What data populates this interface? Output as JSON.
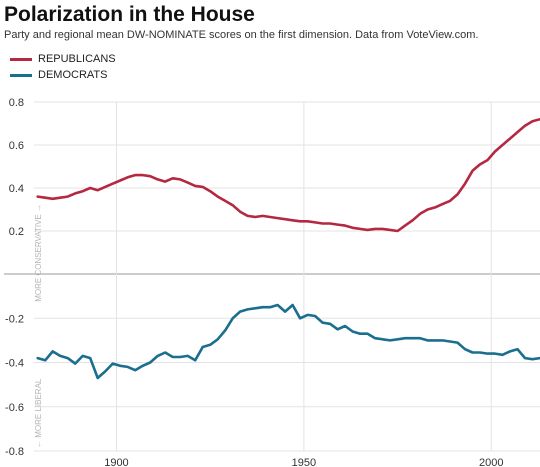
{
  "colors": {
    "republicans": "#b42840",
    "democrats": "#1a6e8e",
    "grid": "#e3e3e3",
    "zero": "#999999"
  },
  "chart_data": {
    "type": "line",
    "title": "Polarization in the House",
    "subtitle": "Party and regional mean DW-NOMINATE scores on the first dimension. Data from VoteView.com.",
    "xlabel": "",
    "ylabel": "",
    "xlim": [
      1878,
      2013
    ],
    "ylim": [
      -0.8,
      0.8
    ],
    "x_ticks": [
      1900,
      1950,
      2000
    ],
    "y_ticks": [
      0.8,
      0.6,
      0.4,
      0.2,
      -0.2,
      -0.4,
      -0.6,
      -0.8
    ],
    "grid": true,
    "legend": "top-left",
    "annotations": {
      "upper": "MORE CONSERVATIVE →",
      "lower": "← MORE LIBERAL"
    },
    "series": [
      {
        "name": "REPUBLICANS",
        "color": "#b42840",
        "x": [
          1879,
          1881,
          1883,
          1885,
          1887,
          1889,
          1891,
          1893,
          1895,
          1897,
          1899,
          1901,
          1903,
          1905,
          1907,
          1909,
          1911,
          1913,
          1915,
          1917,
          1919,
          1921,
          1923,
          1925,
          1927,
          1929,
          1931,
          1933,
          1935,
          1937,
          1939,
          1941,
          1943,
          1945,
          1947,
          1949,
          1951,
          1953,
          1955,
          1957,
          1959,
          1961,
          1963,
          1965,
          1967,
          1969,
          1971,
          1973,
          1975,
          1977,
          1979,
          1981,
          1983,
          1985,
          1987,
          1989,
          1991,
          1993,
          1995,
          1997,
          1999,
          2001,
          2003,
          2005,
          2007,
          2009,
          2011,
          2013
        ],
        "y": [
          0.36,
          0.355,
          0.35,
          0.355,
          0.36,
          0.375,
          0.385,
          0.4,
          0.39,
          0.405,
          0.42,
          0.435,
          0.45,
          0.46,
          0.46,
          0.455,
          0.44,
          0.43,
          0.445,
          0.44,
          0.425,
          0.41,
          0.405,
          0.385,
          0.36,
          0.34,
          0.32,
          0.29,
          0.27,
          0.265,
          0.27,
          0.265,
          0.26,
          0.255,
          0.25,
          0.245,
          0.245,
          0.24,
          0.235,
          0.235,
          0.23,
          0.225,
          0.215,
          0.21,
          0.205,
          0.21,
          0.21,
          0.205,
          0.2,
          0.225,
          0.25,
          0.28,
          0.3,
          0.31,
          0.325,
          0.34,
          0.37,
          0.42,
          0.48,
          0.51,
          0.53,
          0.57,
          0.6,
          0.63,
          0.66,
          0.69,
          0.71,
          0.72
        ]
      },
      {
        "name": "DEMOCRATS",
        "color": "#1a6e8e",
        "x": [
          1879,
          1881,
          1883,
          1885,
          1887,
          1889,
          1891,
          1893,
          1895,
          1897,
          1899,
          1901,
          1903,
          1905,
          1907,
          1909,
          1911,
          1913,
          1915,
          1917,
          1919,
          1921,
          1923,
          1925,
          1927,
          1929,
          1931,
          1933,
          1935,
          1937,
          1939,
          1941,
          1943,
          1945,
          1947,
          1949,
          1951,
          1953,
          1955,
          1957,
          1959,
          1961,
          1963,
          1965,
          1967,
          1969,
          1971,
          1973,
          1975,
          1977,
          1979,
          1981,
          1983,
          1985,
          1987,
          1989,
          1991,
          1993,
          1995,
          1997,
          1999,
          2001,
          2003,
          2005,
          2007,
          2009,
          2011,
          2013
        ],
        "y": [
          -0.38,
          -0.39,
          -0.35,
          -0.37,
          -0.38,
          -0.405,
          -0.37,
          -0.38,
          -0.47,
          -0.44,
          -0.405,
          -0.415,
          -0.42,
          -0.435,
          -0.415,
          -0.4,
          -0.37,
          -0.355,
          -0.375,
          -0.375,
          -0.37,
          -0.39,
          -0.33,
          -0.32,
          -0.295,
          -0.255,
          -0.2,
          -0.17,
          -0.16,
          -0.155,
          -0.15,
          -0.15,
          -0.14,
          -0.17,
          -0.14,
          -0.2,
          -0.185,
          -0.19,
          -0.22,
          -0.225,
          -0.25,
          -0.235,
          -0.26,
          -0.27,
          -0.27,
          -0.29,
          -0.295,
          -0.3,
          -0.295,
          -0.29,
          -0.29,
          -0.29,
          -0.3,
          -0.3,
          -0.3,
          -0.305,
          -0.31,
          -0.34,
          -0.355,
          -0.355,
          -0.36,
          -0.36,
          -0.365,
          -0.35,
          -0.34,
          -0.38,
          -0.385,
          -0.38
        ]
      }
    ]
  }
}
